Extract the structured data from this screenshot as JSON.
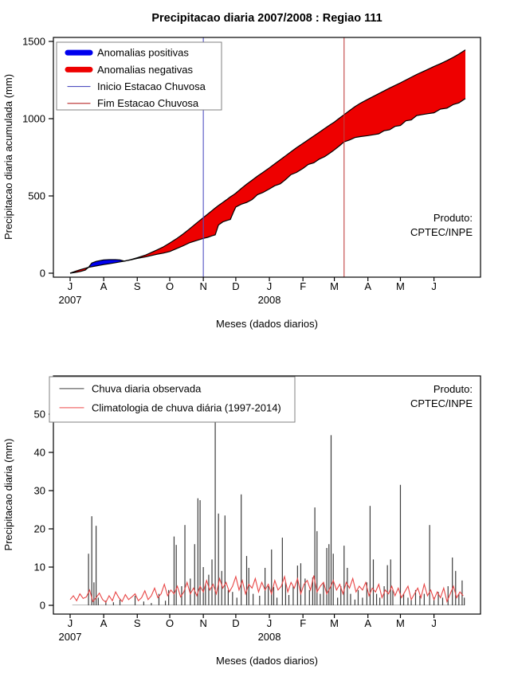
{
  "page": {
    "background": "#ffffff"
  },
  "colors": {
    "positive_fill": "#0000ee",
    "negative_fill": "#ee0000",
    "curve_stroke": "#000000",
    "inicio_line": "#5050c0",
    "fim_line": "#c04040",
    "observed_bar": "#3c3c3c",
    "climatology_line": "#e84545",
    "legend_border": "#808080",
    "axis": "#000000",
    "baseline": "#b8b8b8"
  },
  "chart_data": [
    {
      "type": "area",
      "title": "Precipitacao diaria 2007/2008 : Regiao 111",
      "ylabel": "Precipitacao diaria acumulada (mm)",
      "xlabel": "Meses (dados diarios)",
      "ylim": [
        0,
        1500
      ],
      "yticks": [
        0,
        500,
        1000,
        1500
      ],
      "x_tick_labels": [
        "J",
        "A",
        "S",
        "O",
        "N",
        "D",
        "J",
        "F",
        "M",
        "A",
        "M",
        "J"
      ],
      "month_start_days": [
        0,
        31,
        62,
        92,
        123,
        153,
        184,
        215,
        244,
        275,
        305,
        336
      ],
      "year_labels": [
        {
          "label": "2007",
          "day": 0
        },
        {
          "label": "2008",
          "day": 184
        }
      ],
      "x_range_days": [
        0,
        365
      ],
      "note": "day 0 = 1 Jul 2007; series are cumulative precipitation in mm; clim = climatology upper curve, obs = observed lower curve",
      "points_day_clim_obs": [
        [
          0,
          0,
          0
        ],
        [
          6,
          15,
          6
        ],
        [
          10,
          24,
          12
        ],
        [
          14,
          32,
          20
        ],
        [
          17,
          38,
          38
        ],
        [
          20,
          42,
          66
        ],
        [
          24,
          47,
          76
        ],
        [
          28,
          52,
          82
        ],
        [
          31,
          56,
          86
        ],
        [
          36,
          61,
          88
        ],
        [
          42,
          68,
          88
        ],
        [
          46,
          73,
          86
        ],
        [
          50,
          78,
          78
        ],
        [
          56,
          88,
          86
        ],
        [
          62,
          100,
          96
        ],
        [
          70,
          118,
          106
        ],
        [
          80,
          150,
          122
        ],
        [
          86,
          170,
          130
        ],
        [
          92,
          195,
          140
        ],
        [
          98,
          222,
          158
        ],
        [
          104,
          252,
          176
        ],
        [
          110,
          285,
          196
        ],
        [
          116,
          320,
          210
        ],
        [
          123,
          360,
          225
        ],
        [
          127,
          382,
          232
        ],
        [
          131,
          405,
          242
        ],
        [
          134,
          422,
          248
        ],
        [
          137,
          438,
          312
        ],
        [
          141,
          458,
          332
        ],
        [
          145,
          478,
          342
        ],
        [
          148,
          494,
          348
        ],
        [
          151,
          508,
          398
        ],
        [
          153,
          518,
          428
        ],
        [
          158,
          548,
          446
        ],
        [
          163,
          576,
          458
        ],
        [
          168,
          602,
          476
        ],
        [
          173,
          628,
          508
        ],
        [
          178,
          652,
          522
        ],
        [
          184,
          682,
          545
        ],
        [
          189,
          708,
          566
        ],
        [
          194,
          734,
          578
        ],
        [
          199,
          760,
          606
        ],
        [
          204,
          786,
          638
        ],
        [
          209,
          812,
          652
        ],
        [
          215,
          840,
          678
        ],
        [
          220,
          864,
          704
        ],
        [
          225,
          888,
          714
        ],
        [
          230,
          912,
          738
        ],
        [
          235,
          936,
          754
        ],
        [
          240,
          960,
          778
        ],
        [
          244,
          978,
          798
        ],
        [
          249,
          1005,
          826
        ],
        [
          253,
          1026,
          850
        ],
        [
          258,
          1052,
          862
        ],
        [
          263,
          1078,
          878
        ],
        [
          268,
          1100,
          884
        ],
        [
          275,
          1126,
          890
        ],
        [
          280,
          1144,
          896
        ],
        [
          285,
          1162,
          902
        ],
        [
          290,
          1180,
          922
        ],
        [
          295,
          1198,
          928
        ],
        [
          300,
          1215,
          950
        ],
        [
          305,
          1232,
          956
        ],
        [
          310,
          1250,
          986
        ],
        [
          315,
          1268,
          992
        ],
        [
          320,
          1286,
          1020
        ],
        [
          325,
          1302,
          1026
        ],
        [
          330,
          1318,
          1032
        ],
        [
          336,
          1338,
          1038
        ],
        [
          342,
          1356,
          1062
        ],
        [
          348,
          1376,
          1068
        ],
        [
          354,
          1398,
          1092
        ],
        [
          359,
          1418,
          1102
        ],
        [
          365,
          1445,
          1130
        ]
      ],
      "vlines": [
        {
          "name": "Inicio Estacao Chuvosa",
          "day": 123
        },
        {
          "name": "Fim Estacao Chuvosa",
          "day": 253
        }
      ],
      "legend": [
        {
          "label": "Anomalias positivas",
          "color": "#0000ee",
          "lw": 7
        },
        {
          "label": "Anomalias negativas",
          "color": "#ee0000",
          "lw": 7
        },
        {
          "label": "Inicio Estacao Chuvosa",
          "color": "#5050c0",
          "lw": 1.2
        },
        {
          "label": "Fim Estacao Chuvosa",
          "color": "#c04040",
          "lw": 1.2
        }
      ],
      "produto": {
        "line1": "Produto:",
        "line2": "CPTEC/INPE"
      }
    },
    {
      "type": "bar+line",
      "title": "",
      "ylabel": "Precipitacao diaria (mm)",
      "xlabel": "Meses (dados diarios)",
      "ylim": [
        0,
        57
      ],
      "yticks": [
        0,
        10,
        20,
        30,
        40,
        50
      ],
      "x_tick_labels": [
        "J",
        "A",
        "S",
        "O",
        "N",
        "D",
        "J",
        "F",
        "M",
        "A",
        "M",
        "J"
      ],
      "month_start_days": [
        0,
        31,
        62,
        92,
        123,
        153,
        184,
        215,
        244,
        275,
        305,
        336
      ],
      "year_labels": [
        {
          "label": "2007",
          "day": 0
        },
        {
          "label": "2008",
          "day": 184
        }
      ],
      "x_range_days": [
        0,
        365
      ],
      "note": "observed daily rainfall spikes (mm); day 0 = 1 Jul 2007",
      "bars_day_mm": [
        [
          17,
          13.5
        ],
        [
          20,
          23.3
        ],
        [
          22,
          6
        ],
        [
          24,
          20.8
        ],
        [
          26,
          2
        ],
        [
          33,
          1.2
        ],
        [
          40,
          0.8
        ],
        [
          46,
          1.5
        ],
        [
          60,
          2.5
        ],
        [
          68,
          1
        ],
        [
          75,
          0.6
        ],
        [
          82,
          3
        ],
        [
          88,
          1.2
        ],
        [
          91,
          4
        ],
        [
          96,
          18
        ],
        [
          98,
          15.8
        ],
        [
          103,
          5
        ],
        [
          106,
          21
        ],
        [
          111,
          7
        ],
        [
          115,
          16
        ],
        [
          118,
          28
        ],
        [
          120,
          27.5
        ],
        [
          123,
          10
        ],
        [
          125,
          5.5
        ],
        [
          128,
          8
        ],
        [
          131,
          12
        ],
        [
          134,
          54
        ],
        [
          137,
          24
        ],
        [
          140,
          9
        ],
        [
          143,
          23.5
        ],
        [
          146,
          4
        ],
        [
          150,
          3.5
        ],
        [
          154,
          2
        ],
        [
          158,
          29
        ],
        [
          163,
          12.9
        ],
        [
          165,
          9.8
        ],
        [
          169,
          3
        ],
        [
          175,
          2.5
        ],
        [
          180,
          9.8
        ],
        [
          183,
          5
        ],
        [
          186,
          14.6
        ],
        [
          188,
          4.8
        ],
        [
          191,
          2
        ],
        [
          196,
          17.7
        ],
        [
          199,
          6
        ],
        [
          202,
          2.7
        ],
        [
          206,
          5
        ],
        [
          210,
          10.4
        ],
        [
          213,
          11
        ],
        [
          217,
          7
        ],
        [
          221,
          4
        ],
        [
          224,
          7.3
        ],
        [
          226,
          25.6
        ],
        [
          228,
          19.4
        ],
        [
          231,
          3
        ],
        [
          234,
          6
        ],
        [
          237,
          15
        ],
        [
          239,
          16
        ],
        [
          241,
          44.5
        ],
        [
          243,
          13.5
        ],
        [
          247,
          2
        ],
        [
          250,
          5
        ],
        [
          253,
          15.6
        ],
        [
          256,
          9.8
        ],
        [
          259,
          3
        ],
        [
          263,
          1.5
        ],
        [
          266,
          4
        ],
        [
          270,
          2
        ],
        [
          274,
          6
        ],
        [
          277,
          26
        ],
        [
          280,
          12
        ],
        [
          283,
          3
        ],
        [
          286,
          2
        ],
        [
          290,
          5
        ],
        [
          293,
          10.5
        ],
        [
          296,
          12
        ],
        [
          298,
          4
        ],
        [
          305,
          31.5
        ],
        [
          308,
          3
        ],
        [
          312,
          2
        ],
        [
          315,
          1.5
        ],
        [
          319,
          4
        ],
        [
          323,
          2.5
        ],
        [
          327,
          3
        ],
        [
          332,
          21
        ],
        [
          336,
          2
        ],
        [
          340,
          3.5
        ],
        [
          344,
          2
        ],
        [
          349,
          5
        ],
        [
          353,
          12.5
        ],
        [
          356,
          9
        ],
        [
          359,
          3
        ],
        [
          362,
          6.5
        ],
        [
          364,
          2
        ]
      ],
      "climatology": {
        "step_days": 3,
        "values": [
          1.5,
          2.5,
          1.2,
          3.0,
          1.8,
          2.2,
          4.0,
          1.0,
          2.0,
          3.2,
          1.5,
          0.8,
          2.5,
          1.2,
          3.5,
          2.0,
          1.0,
          2.8,
          1.5,
          2.2,
          3.0,
          1.2,
          2.0,
          3.8,
          1.5,
          2.5,
          4.5,
          2.0,
          3.0,
          5.5,
          2.5,
          4.0,
          3.0,
          5.0,
          2.2,
          3.5,
          6.0,
          3.0,
          4.5,
          2.5,
          5.0,
          3.5,
          6.5,
          4.0,
          5.5,
          3.0,
          7.0,
          4.5,
          6.0,
          3.5,
          5.0,
          7.5,
          4.0,
          6.5,
          3.0,
          5.5,
          4.5,
          7.0,
          3.5,
          6.0,
          4.0,
          5.5,
          3.0,
          6.5,
          4.0,
          5.0,
          7.5,
          3.5,
          6.0,
          4.5,
          7.0,
          3.0,
          5.5,
          6.5,
          4.0,
          7.8,
          3.5,
          5.0,
          6.0,
          3.0,
          4.5,
          6.5,
          4.0,
          5.5,
          3.0,
          6.0,
          4.5,
          7.0,
          3.5,
          5.0,
          4.0,
          6.0,
          2.5,
          4.5,
          3.5,
          5.5,
          2.0,
          4.0,
          3.0,
          5.0,
          2.5,
          4.5,
          2.0,
          3.5,
          5.0,
          1.5,
          3.0,
          4.5,
          2.0,
          5.5,
          2.5,
          4.0,
          1.5,
          3.5,
          2.0,
          4.5,
          1.0,
          3.0,
          5.0,
          2.0,
          3.5,
          2.5
        ]
      },
      "legend": [
        {
          "label": "Chuva diaria observada",
          "color": "#666666",
          "lw": 1.2
        },
        {
          "label": "Climatologia de chuva diária (1997-2014)",
          "color": "#f26b6b",
          "lw": 1.2
        }
      ],
      "produto": {
        "line1": "Produto:",
        "line2": "CPTEC/INPE"
      }
    }
  ]
}
